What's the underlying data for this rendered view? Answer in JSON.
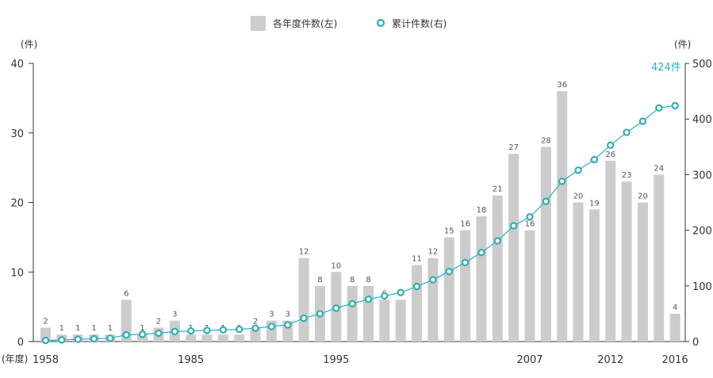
{
  "chart_data": {
    "type": "bar+line",
    "legend": {
      "bars": "各年度件数(左)",
      "line": "累计件数(右)"
    },
    "left_axis": {
      "unit": "(件)",
      "ylim": [
        0,
        40
      ],
      "ticks": [
        "0",
        "10",
        "20",
        "30",
        "40"
      ]
    },
    "right_axis": {
      "unit": "(件)",
      "ylim": [
        0,
        500
      ],
      "ticks": [
        "0",
        "100",
        "200",
        "300",
        "400",
        "500"
      ]
    },
    "x_axis": {
      "unit": "(年度)",
      "shown_labels": [
        {
          "index": 0,
          "label": "1958"
        },
        {
          "index": 9,
          "label": "1985"
        },
        {
          "index": 18,
          "label": "1995"
        },
        {
          "index": 30,
          "label": "2007"
        },
        {
          "index": 35,
          "label": "2012"
        },
        {
          "index": 39,
          "label": "2016"
        }
      ]
    },
    "annual_counts": [
      2,
      1,
      1,
      1,
      1,
      6,
      1,
      2,
      3,
      1,
      1,
      1,
      1,
      2,
      3,
      3,
      12,
      8,
      10,
      8,
      8,
      6,
      6,
      11,
      12,
      15,
      16,
      18,
      21,
      27,
      16,
      28,
      36,
      20,
      19,
      26,
      23,
      20,
      24,
      4
    ],
    "cumulative_counts": [
      2,
      3,
      4,
      5,
      6,
      12,
      13,
      15,
      18,
      19,
      20,
      21,
      22,
      24,
      27,
      30,
      42,
      50,
      60,
      68,
      76,
      82,
      88,
      99,
      111,
      126,
      142,
      160,
      181,
      208,
      224,
      252,
      288,
      308,
      327,
      353,
      376,
      396,
      420,
      424
    ],
    "callout": "424件",
    "colors": {
      "bar": "#cccccc",
      "line": "#2ab0b8",
      "marker_fill": "#ffffff"
    }
  }
}
